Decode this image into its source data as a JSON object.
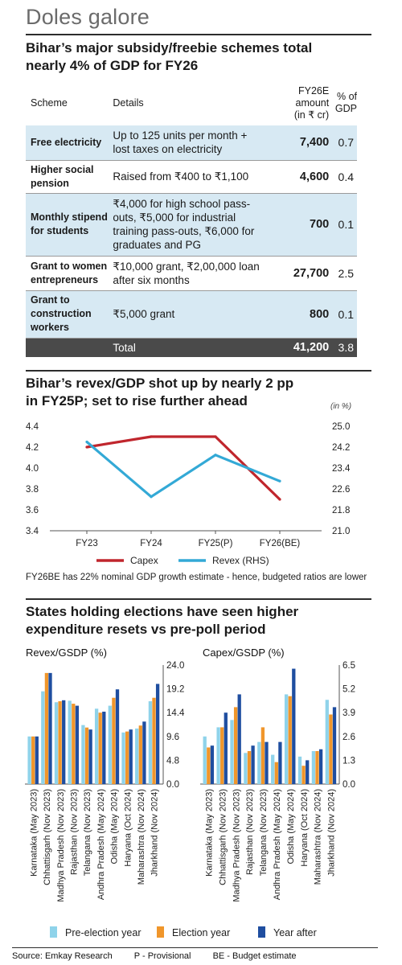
{
  "header": {
    "title": "Doles galore"
  },
  "table_section": {
    "headline_lines": [
      "Bihar’s major subsidy/freebie schemes total",
      "nearly 4% of GDP for FY26"
    ],
    "columns": {
      "scheme": "Scheme",
      "details": "Details",
      "amount_lines": [
        "FY26E",
        "amount",
        "(in ₹ cr)"
      ],
      "gdp_lines": [
        "% of",
        "GDP"
      ]
    },
    "rows": [
      {
        "scheme_lines": [
          "Free electricity"
        ],
        "details_lines": [
          "Up to 125 units per month +",
          "lost taxes on electricity"
        ],
        "amount": "7,400",
        "gdp": "0.7"
      },
      {
        "scheme_lines": [
          "Higher social",
          "pension"
        ],
        "details_lines": [
          "Raised from ₹400 to ₹1,100"
        ],
        "amount": "4,600",
        "gdp": "0.4"
      },
      {
        "scheme_lines": [
          "Monthly stipend",
          "for students"
        ],
        "details_lines": [
          "₹4,000 for high school pass-",
          "outs, ₹5,000 for industrial",
          "training pass-outs, ₹6,000 for",
          "graduates and PG"
        ],
        "amount": "700",
        "gdp": "0.1"
      },
      {
        "scheme_lines": [
          "Grant to women",
          "entrepreneurs"
        ],
        "details_lines": [
          "₹10,000 grant, ₹2,00,000 loan",
          "after six months"
        ],
        "amount": "27,700",
        "gdp": "2.5"
      },
      {
        "scheme_lines": [
          "Grant to",
          "construction",
          "workers"
        ],
        "details_lines": [
          "₹5,000 grant"
        ],
        "amount": "800",
        "gdp": "0.1"
      }
    ],
    "total": {
      "label": "Total",
      "amount": "41,200",
      "gdp": "3.8"
    }
  },
  "line_section": {
    "headline_lines": [
      "Bihar’s revex/GDP shot up by nearly 2 pp",
      "in FY25P; set to rise further ahead"
    ],
    "note": "FY26BE has 22% nominal GDP growth estimate - hence, budgeted ratios are lower"
  },
  "bar_section": {
    "headline_lines": [
      "States holding elections have seen higher",
      "expenditure resets vs pre-poll period"
    ]
  },
  "footer": {
    "source": "Source: Emkay Research",
    "provisional": "P - Provisional",
    "budget": "BE - Budget estimate"
  },
  "chart_data": [
    {
      "type": "line",
      "title": "Bihar’s revex/GDP shot up by nearly 2 pp in FY25P; set to rise further ahead",
      "x": [
        "FY23",
        "FY24",
        "FY25(P)",
        "FY26(BE)"
      ],
      "y_left": {
        "ticks": [
          "4.4",
          "4.2",
          "4.0",
          "3.8",
          "3.6",
          "3.4"
        ],
        "ylim": [
          3.4,
          4.4
        ]
      },
      "y_right": {
        "ticks": [
          "25.0",
          "24.2",
          "23.4",
          "22.6",
          "21.8",
          "21.0"
        ],
        "ylim": [
          21.0,
          25.0
        ],
        "unit_label": "(in %)"
      },
      "series": [
        {
          "name": "Capex",
          "axis": "left",
          "color": "#c0262d",
          "values": [
            4.2,
            4.3,
            4.3,
            3.7
          ]
        },
        {
          "name": "Revex (RHS)",
          "axis": "right",
          "color": "#33a9d6",
          "values": [
            24.4,
            22.3,
            23.9,
            22.9
          ]
        }
      ],
      "legend_position": "bottom",
      "grid": false
    },
    {
      "type": "bar",
      "title": "Revex/GSDP (%)",
      "categories": [
        "Karnataka (May 2023)",
        "Chhattisgarh (Nov 2023)",
        "Madhya Pradesh (Nov 2023)",
        "Rajasthan (Nov 2023)",
        "Telangana (Nov 2023)",
        "Andhra Pradesh (May 2024)",
        "Odisha (May 2024)",
        "Haryana (Oct 2024)",
        "Maharashtra (Nov 2024)",
        "Jharkhand (Nov 2024)"
      ],
      "y_ticks": [
        "24.0",
        "19.2",
        "14.4",
        "9.6",
        "4.8",
        "0.0"
      ],
      "ylim": [
        0,
        24.0
      ],
      "y_axis_side": "right",
      "series": [
        {
          "name": "Pre-election year",
          "color": "#8fd3ea",
          "values": [
            9.6,
            18.7,
            16.5,
            16.8,
            11.9,
            15.2,
            15.8,
            10.4,
            11.2,
            16.7
          ]
        },
        {
          "name": "Election year",
          "color": "#f0962b",
          "values": [
            9.6,
            22.4,
            16.7,
            16.2,
            11.4,
            14.4,
            17.4,
            10.6,
            11.8,
            17.4
          ]
        },
        {
          "name": "Year after",
          "color": "#1f4ea0",
          "values": [
            9.6,
            22.4,
            16.9,
            15.8,
            11.0,
            14.6,
            19.1,
            11.0,
            12.6,
            20.2
          ]
        }
      ],
      "grid": false
    },
    {
      "type": "bar",
      "title": "Capex/GSDP (%)",
      "categories": [
        "Karnataka (May 2023)",
        "Chhattisgarh (Nov 2023)",
        "Madhya Pradesh (Nov 2023)",
        "Rajasthan (Nov 2023)",
        "Telangana (Nov 2023)",
        "Andhra Pradesh (May 2024)",
        "Odisha (May 2024)",
        "Haryana (Oct 2024)",
        "Maharashtra (Nov 2024)",
        "Jharkhand (Nov 2024)"
      ],
      "y_ticks": [
        "6.5",
        "5.2",
        "3.9",
        "2.6",
        "1.3",
        "0.0"
      ],
      "ylim": [
        0,
        6.5
      ],
      "y_axis_side": "right",
      "series": [
        {
          "name": "Pre-election year",
          "color": "#8fd3ea",
          "values": [
            2.6,
            3.1,
            3.5,
            1.7,
            2.3,
            1.6,
            4.9,
            1.5,
            1.8,
            4.6
          ]
        },
        {
          "name": "Election year",
          "color": "#f0962b",
          "values": [
            2.0,
            3.1,
            4.2,
            1.8,
            3.1,
            1.2,
            4.8,
            1.0,
            1.8,
            3.8
          ]
        },
        {
          "name": "Year after",
          "color": "#1f4ea0",
          "values": [
            2.1,
            3.9,
            4.9,
            2.1,
            2.3,
            2.3,
            6.3,
            1.3,
            1.9,
            4.2
          ]
        }
      ],
      "legend_position": "bottom",
      "grid": false
    }
  ]
}
